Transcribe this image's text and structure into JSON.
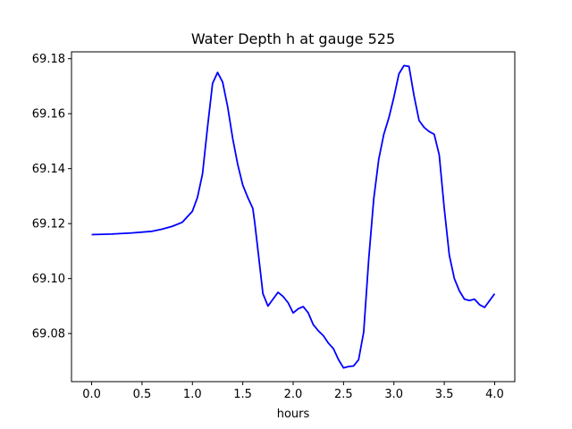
{
  "chart_data": {
    "type": "line",
    "title": "Water Depth h at gauge 525",
    "xlabel": "hours",
    "ylabel": "",
    "xlim": [
      -0.2,
      4.2
    ],
    "ylim": [
      69.0625,
      69.1825
    ],
    "xticks": [
      0.0,
      0.5,
      1.0,
      1.5,
      2.0,
      2.5,
      3.0,
      3.5,
      4.0
    ],
    "xtick_labels": [
      "0.0",
      "0.5",
      "1.0",
      "1.5",
      "2.0",
      "2.5",
      "3.0",
      "3.5",
      "4.0"
    ],
    "yticks": [
      69.08,
      69.1,
      69.12,
      69.14,
      69.16,
      69.18
    ],
    "ytick_labels": [
      "69.08",
      "69.10",
      "69.12",
      "69.14",
      "69.16",
      "69.18"
    ],
    "grid": false,
    "series": [
      {
        "color": "#0000ff",
        "x": [
          0.0,
          0.2,
          0.4,
          0.6,
          0.7,
          0.8,
          0.9,
          1.0,
          1.05,
          1.1,
          1.15,
          1.2,
          1.25,
          1.3,
          1.35,
          1.4,
          1.45,
          1.5,
          1.55,
          1.6,
          1.62,
          1.65,
          1.7,
          1.75,
          1.8,
          1.85,
          1.9,
          1.95,
          2.0,
          2.05,
          2.1,
          2.15,
          2.2,
          2.25,
          2.3,
          2.35,
          2.4,
          2.45,
          2.5,
          2.55,
          2.6,
          2.65,
          2.7,
          2.75,
          2.8,
          2.85,
          2.9,
          2.95,
          3.0,
          3.05,
          3.1,
          3.15,
          3.2,
          3.25,
          3.3,
          3.35,
          3.4,
          3.45,
          3.5,
          3.55,
          3.6,
          3.65,
          3.7,
          3.75,
          3.8,
          3.85,
          3.9,
          3.95,
          4.0
        ],
        "y": [
          69.116,
          69.1162,
          69.1166,
          69.1172,
          69.118,
          69.119,
          69.1205,
          69.1245,
          69.1295,
          69.138,
          69.155,
          69.171,
          69.175,
          69.1715,
          69.1625,
          69.151,
          69.1415,
          69.134,
          69.1295,
          69.1255,
          69.12,
          69.1105,
          69.0945,
          69.09,
          69.0925,
          69.095,
          69.0935,
          69.0912,
          69.0875,
          69.089,
          69.0898,
          69.0875,
          69.0832,
          69.081,
          69.0792,
          69.0765,
          69.0745,
          69.0705,
          69.0675,
          69.068,
          69.0682,
          69.0705,
          69.0805,
          69.107,
          69.129,
          69.1435,
          69.1525,
          69.1585,
          69.166,
          69.1745,
          69.1775,
          69.1772,
          69.1665,
          69.1575,
          69.155,
          69.1535,
          69.1525,
          69.145,
          69.1255,
          69.1085,
          69.1,
          69.0955,
          69.0925,
          69.092,
          69.0925,
          69.0905,
          69.0895,
          69.092,
          69.0945
        ]
      }
    ]
  }
}
